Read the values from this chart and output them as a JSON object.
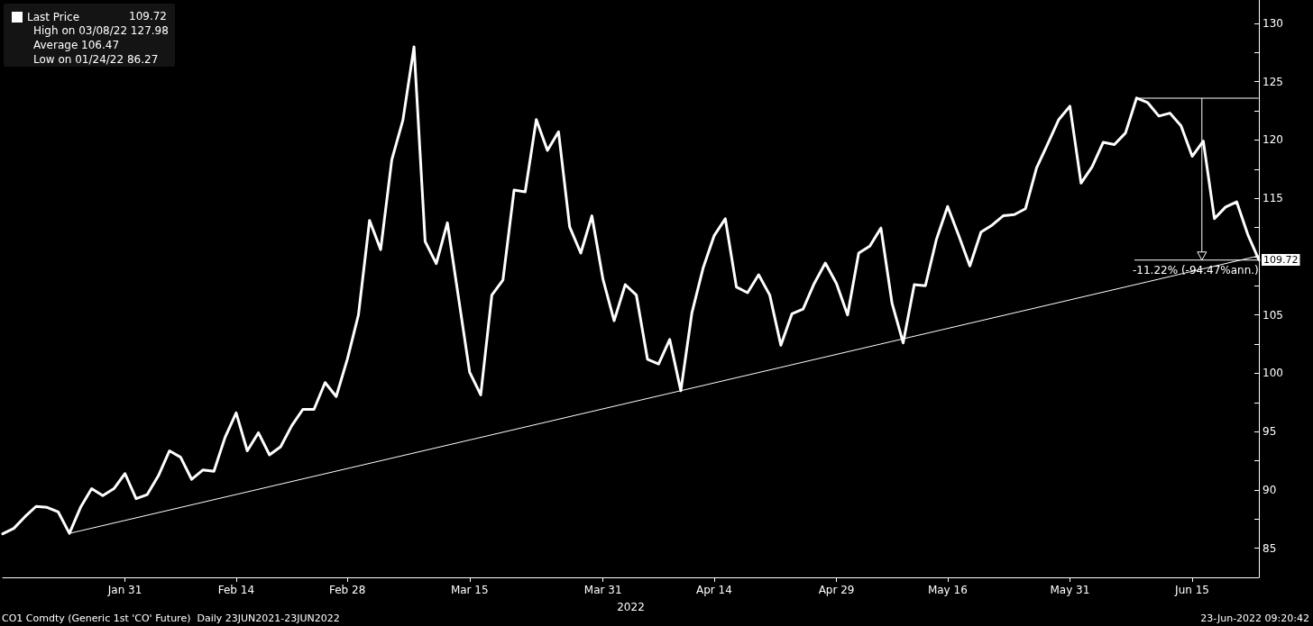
{
  "chart_data": {
    "type": "line",
    "xlabel": "2022",
    "categories": [
      null,
      null,
      null,
      null,
      null,
      null,
      null,
      null,
      null,
      null,
      null,
      "Jan 31",
      null,
      null,
      null,
      null,
      null,
      null,
      null,
      null,
      null,
      "Feb 14",
      null,
      null,
      null,
      null,
      null,
      null,
      null,
      null,
      null,
      "Feb 28",
      null,
      null,
      null,
      null,
      null,
      null,
      null,
      null,
      null,
      null,
      "Mar 15",
      null,
      null,
      null,
      null,
      null,
      null,
      null,
      null,
      null,
      null,
      null,
      "Mar 31",
      null,
      null,
      null,
      null,
      null,
      null,
      null,
      null,
      null,
      "Apr 14",
      null,
      null,
      null,
      null,
      null,
      null,
      null,
      null,
      null,
      null,
      "Apr 29",
      null,
      null,
      null,
      null,
      null,
      null,
      null,
      null,
      null,
      "May 16",
      null,
      null,
      null,
      null,
      null,
      null,
      null,
      null,
      null,
      null,
      "May 31",
      null,
      null,
      null,
      null,
      null,
      null,
      null,
      null,
      null,
      null,
      "Jun 15",
      null,
      null,
      null,
      null,
      null,
      null
    ],
    "series": [
      {
        "name": "Last Price",
        "color": "#ffffff",
        "values": [
          86.24,
          86.7,
          87.7,
          88.58,
          88.5,
          88.1,
          86.27,
          88.5,
          90.1,
          89.5,
          90.1,
          91.4,
          89.25,
          89.6,
          91.2,
          93.35,
          92.8,
          90.9,
          91.7,
          91.6,
          94.5,
          96.6,
          93.35,
          94.9,
          93.0,
          93.7,
          95.5,
          96.9,
          96.9,
          99.2,
          98.0,
          101.2,
          105.0,
          113.1,
          110.6,
          118.3,
          121.7,
          127.98,
          111.3,
          109.4,
          112.9,
          106.5,
          100.1,
          98.15,
          106.7,
          108.0,
          115.7,
          115.55,
          121.75,
          119.1,
          120.7,
          112.55,
          110.3,
          113.5,
          108.05,
          104.5,
          107.6,
          106.7,
          101.2,
          100.8,
          102.9,
          98.5,
          105.2,
          109.0,
          111.8,
          113.25,
          107.4,
          106.9,
          108.45,
          106.7,
          102.4,
          105.1,
          105.5,
          107.7,
          109.45,
          107.7,
          105.0,
          110.3,
          110.9,
          112.45,
          106.0,
          102.6,
          107.6,
          107.5,
          111.5,
          114.3,
          111.8,
          109.2,
          112.1,
          112.7,
          113.5,
          113.6,
          114.1,
          117.6,
          119.65,
          121.75,
          122.9,
          116.3,
          117.7,
          119.8,
          119.6,
          120.6,
          123.6,
          123.2,
          122.05,
          122.3,
          121.2,
          118.6,
          119.9,
          113.25,
          114.25,
          114.7,
          111.9,
          109.72
        ],
        "value_labels": [
          null,
          null,
          null,
          null,
          null,
          null,
          null,
          null,
          null,
          null,
          null,
          null,
          null,
          null,
          null,
          null,
          null,
          null,
          null,
          null,
          null,
          null,
          null,
          null,
          null,
          null,
          null,
          null,
          null,
          null,
          null,
          null,
          null,
          null,
          null,
          null,
          null,
          null,
          null,
          null,
          null,
          null,
          null,
          null,
          null,
          null,
          null,
          null,
          null,
          null,
          null,
          null,
          null,
          null,
          null,
          null,
          null,
          null,
          null,
          null,
          null,
          null,
          null,
          null,
          null,
          null,
          null,
          null,
          null,
          null,
          null,
          null,
          null,
          null,
          null,
          null,
          null,
          null,
          null,
          null,
          null,
          null,
          null,
          null,
          null,
          null,
          null,
          null,
          null,
          null,
          null,
          null,
          null,
          null,
          null,
          null,
          null,
          null,
          null,
          null,
          null,
          null,
          null,
          null,
          null,
          null,
          null,
          null,
          null,
          null,
          null,
          null,
          null,
          "109.72"
        ]
      },
      {
        "type": "line",
        "color": "#ffffff",
        "values": [
          null,
          null,
          null,
          null,
          null,
          null,
          86.27,
          null,
          null,
          null,
          null,
          null,
          null,
          null,
          null,
          null,
          null,
          null,
          null,
          null,
          null,
          null,
          null,
          null,
          null,
          null,
          null,
          null,
          null,
          null,
          null,
          null,
          null,
          null,
          null,
          null,
          null,
          null,
          null,
          null,
          null,
          null,
          null,
          null,
          null,
          null,
          null,
          null,
          null,
          null,
          null,
          null,
          null,
          null,
          null,
          null,
          null,
          null,
          null,
          null,
          null,
          null,
          null,
          null,
          null,
          null,
          null,
          null,
          null,
          null,
          null,
          null,
          null,
          null,
          null,
          null,
          null,
          null,
          null,
          null,
          null,
          null,
          null,
          null,
          null,
          null,
          null,
          null,
          null,
          null,
          null,
          null,
          null,
          null,
          null,
          null,
          null,
          null,
          null,
          null,
          null,
          null,
          null,
          null,
          null,
          null,
          null,
          null,
          null,
          null,
          null,
          null,
          null,
          110.07
        ]
      }
    ],
    "ylim": [
      82.5,
      132
    ],
    "yticks": [
      85,
      {
        "value": 87.5,
        "label": null
      },
      90,
      {
        "value": 92.5,
        "label": null
      },
      95,
      {
        "value": 97.5,
        "label": null
      },
      100,
      {
        "value": 102.5,
        "label": null
      },
      105,
      {
        "value": 107.5,
        "label": null
      },
      {
        "value": 110,
        "label": null
      },
      {
        "value": 112.5,
        "label": null
      },
      115,
      {
        "value": 117.5,
        "label": null
      },
      120,
      {
        "value": 122.5,
        "label": null
      },
      125,
      {
        "value": 127.5,
        "label": null
      },
      130
    ],
    "legend": "top left",
    "annotations": [
      "High on 03/08/22 127.98",
      "Average 106.47",
      "Low on 01/24/22 86.27",
      "-11.22% (-94.47%ann.)",
      "CO1 Comdty (Generic 1st 'CO' Future)  Daily 23JUN2021-23JUN2022",
      "23-Jun-2022 09:20:42"
    ]
  }
}
